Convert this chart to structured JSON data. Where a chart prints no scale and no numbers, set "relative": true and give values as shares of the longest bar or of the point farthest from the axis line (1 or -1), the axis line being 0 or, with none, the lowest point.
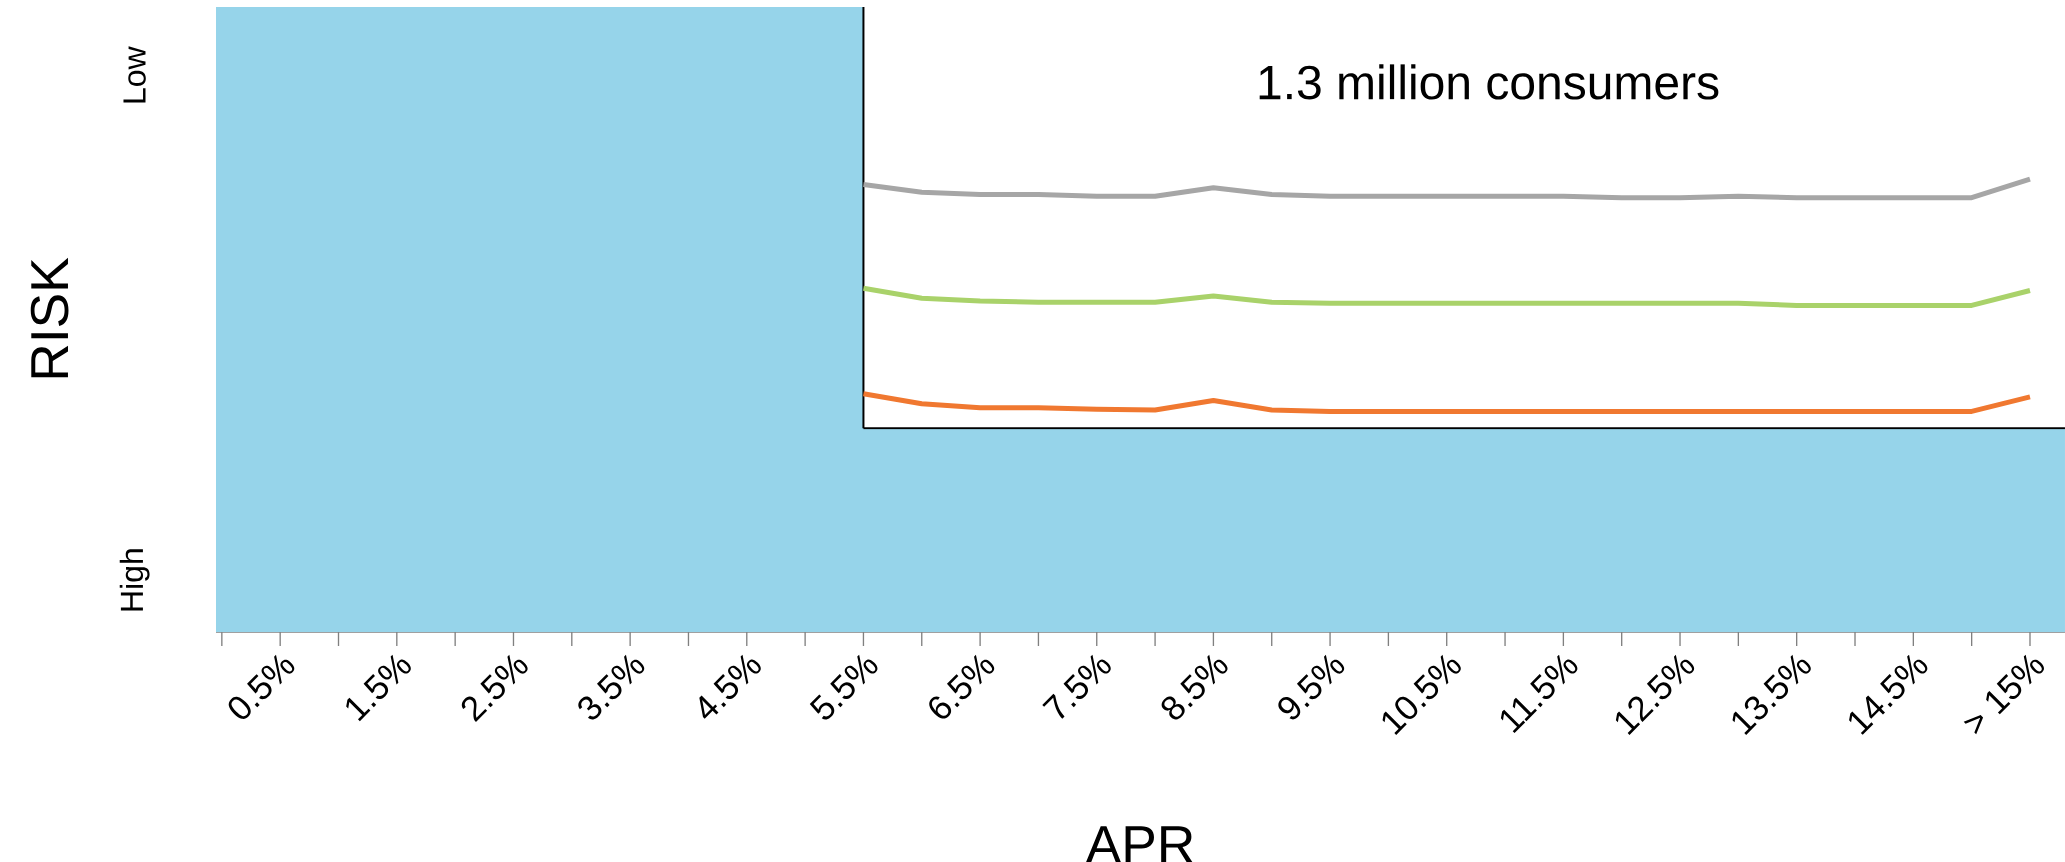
{
  "chart_data": {
    "type": "line",
    "relative": true,
    "xlabel": "APR",
    "ylabel": "RISK",
    "annotations": [
      "1.3 million consumers",
      "Low",
      "High"
    ],
    "x": [
      5.5,
      6,
      6.5,
      7,
      7.5,
      8,
      8.5,
      9,
      9.5,
      10,
      10.5,
      11,
      11.5,
      12,
      12.5,
      13,
      13.5,
      14,
      14.5,
      15,
      15.5
    ],
    "xlim": [
      -0.05,
      15.8
    ],
    "xticks": [
      {
        "value": 0,
        "label": null
      },
      {
        "value": 0.5,
        "label": "0.5%"
      },
      {
        "value": 1,
        "label": null
      },
      {
        "value": 1.5,
        "label": "1.5%"
      },
      {
        "value": 2,
        "label": null
      },
      {
        "value": 2.5,
        "label": "2.5%"
      },
      {
        "value": 3,
        "label": null
      },
      {
        "value": 3.5,
        "label": "3.5%"
      },
      {
        "value": 4,
        "label": null
      },
      {
        "value": 4.5,
        "label": "4.5%"
      },
      {
        "value": 5,
        "label": null
      },
      {
        "value": 5.5,
        "label": "5.5%"
      },
      {
        "value": 6,
        "label": null
      },
      {
        "value": 6.5,
        "label": "6.5%"
      },
      {
        "value": 7,
        "label": null
      },
      {
        "value": 7.5,
        "label": "7.5%"
      },
      {
        "value": 8,
        "label": null
      },
      {
        "value": 8.5,
        "label": "8.5%"
      },
      {
        "value": 9,
        "label": null
      },
      {
        "value": 9.5,
        "label": "9.5%"
      },
      {
        "value": 10,
        "label": null
      },
      {
        "value": 10.5,
        "label": "10.5%"
      },
      {
        "value": 11,
        "label": null
      },
      {
        "value": 11.5,
        "label": "11.5%"
      },
      {
        "value": 12,
        "label": null
      },
      {
        "value": 12.5,
        "label": "12.5%"
      },
      {
        "value": 13,
        "label": null
      },
      {
        "value": 13.5,
        "label": "13.5%"
      },
      {
        "value": 14,
        "label": null
      },
      {
        "value": 14.5,
        "label": "14.5%"
      },
      {
        "value": 15,
        "label": null
      },
      {
        "value": 15.5,
        "label": "> 15%"
      }
    ],
    "series": [
      {
        "color": "#a6a6a6",
        "values": [
          0.988,
          0.971,
          0.966,
          0.966,
          0.962,
          0.962,
          0.981,
          0.966,
          0.962,
          0.962,
          0.962,
          0.962,
          0.962,
          0.959,
          0.959,
          0.962,
          0.959,
          0.959,
          0.959,
          0.959,
          1
        ]
      },
      {
        "color": "#a9d26a",
        "values": [
          0.759,
          0.737,
          0.731,
          0.728,
          0.728,
          0.728,
          0.742,
          0.728,
          0.726,
          0.726,
          0.726,
          0.726,
          0.726,
          0.726,
          0.726,
          0.726,
          0.721,
          0.721,
          0.721,
          0.721,
          0.754
        ]
      },
      {
        "color": "#f07830",
        "values": [
          0.526,
          0.504,
          0.495,
          0.495,
          0.492,
          0.49,
          0.511,
          0.49,
          0.487,
          0.487,
          0.487,
          0.487,
          0.487,
          0.487,
          0.487,
          0.487,
          0.487,
          0.487,
          0.487,
          0.487,
          0.519
        ]
      }
    ],
    "bands": [
      {
        "axis": "x",
        "from": -0.05,
        "to": 5.5,
        "color": "#96d4ea"
      },
      {
        "axis": "y",
        "from": 0,
        "to": 0.45,
        "color": "#96d4ea"
      }
    ],
    "ref_lines": [
      {
        "axis": "x",
        "value": 5.5,
        "color": "#000000"
      },
      {
        "axis": "y",
        "value": 0.45,
        "color": "#000000"
      }
    ],
    "grid": false,
    "marker": "none",
    "line_style": "solid"
  }
}
